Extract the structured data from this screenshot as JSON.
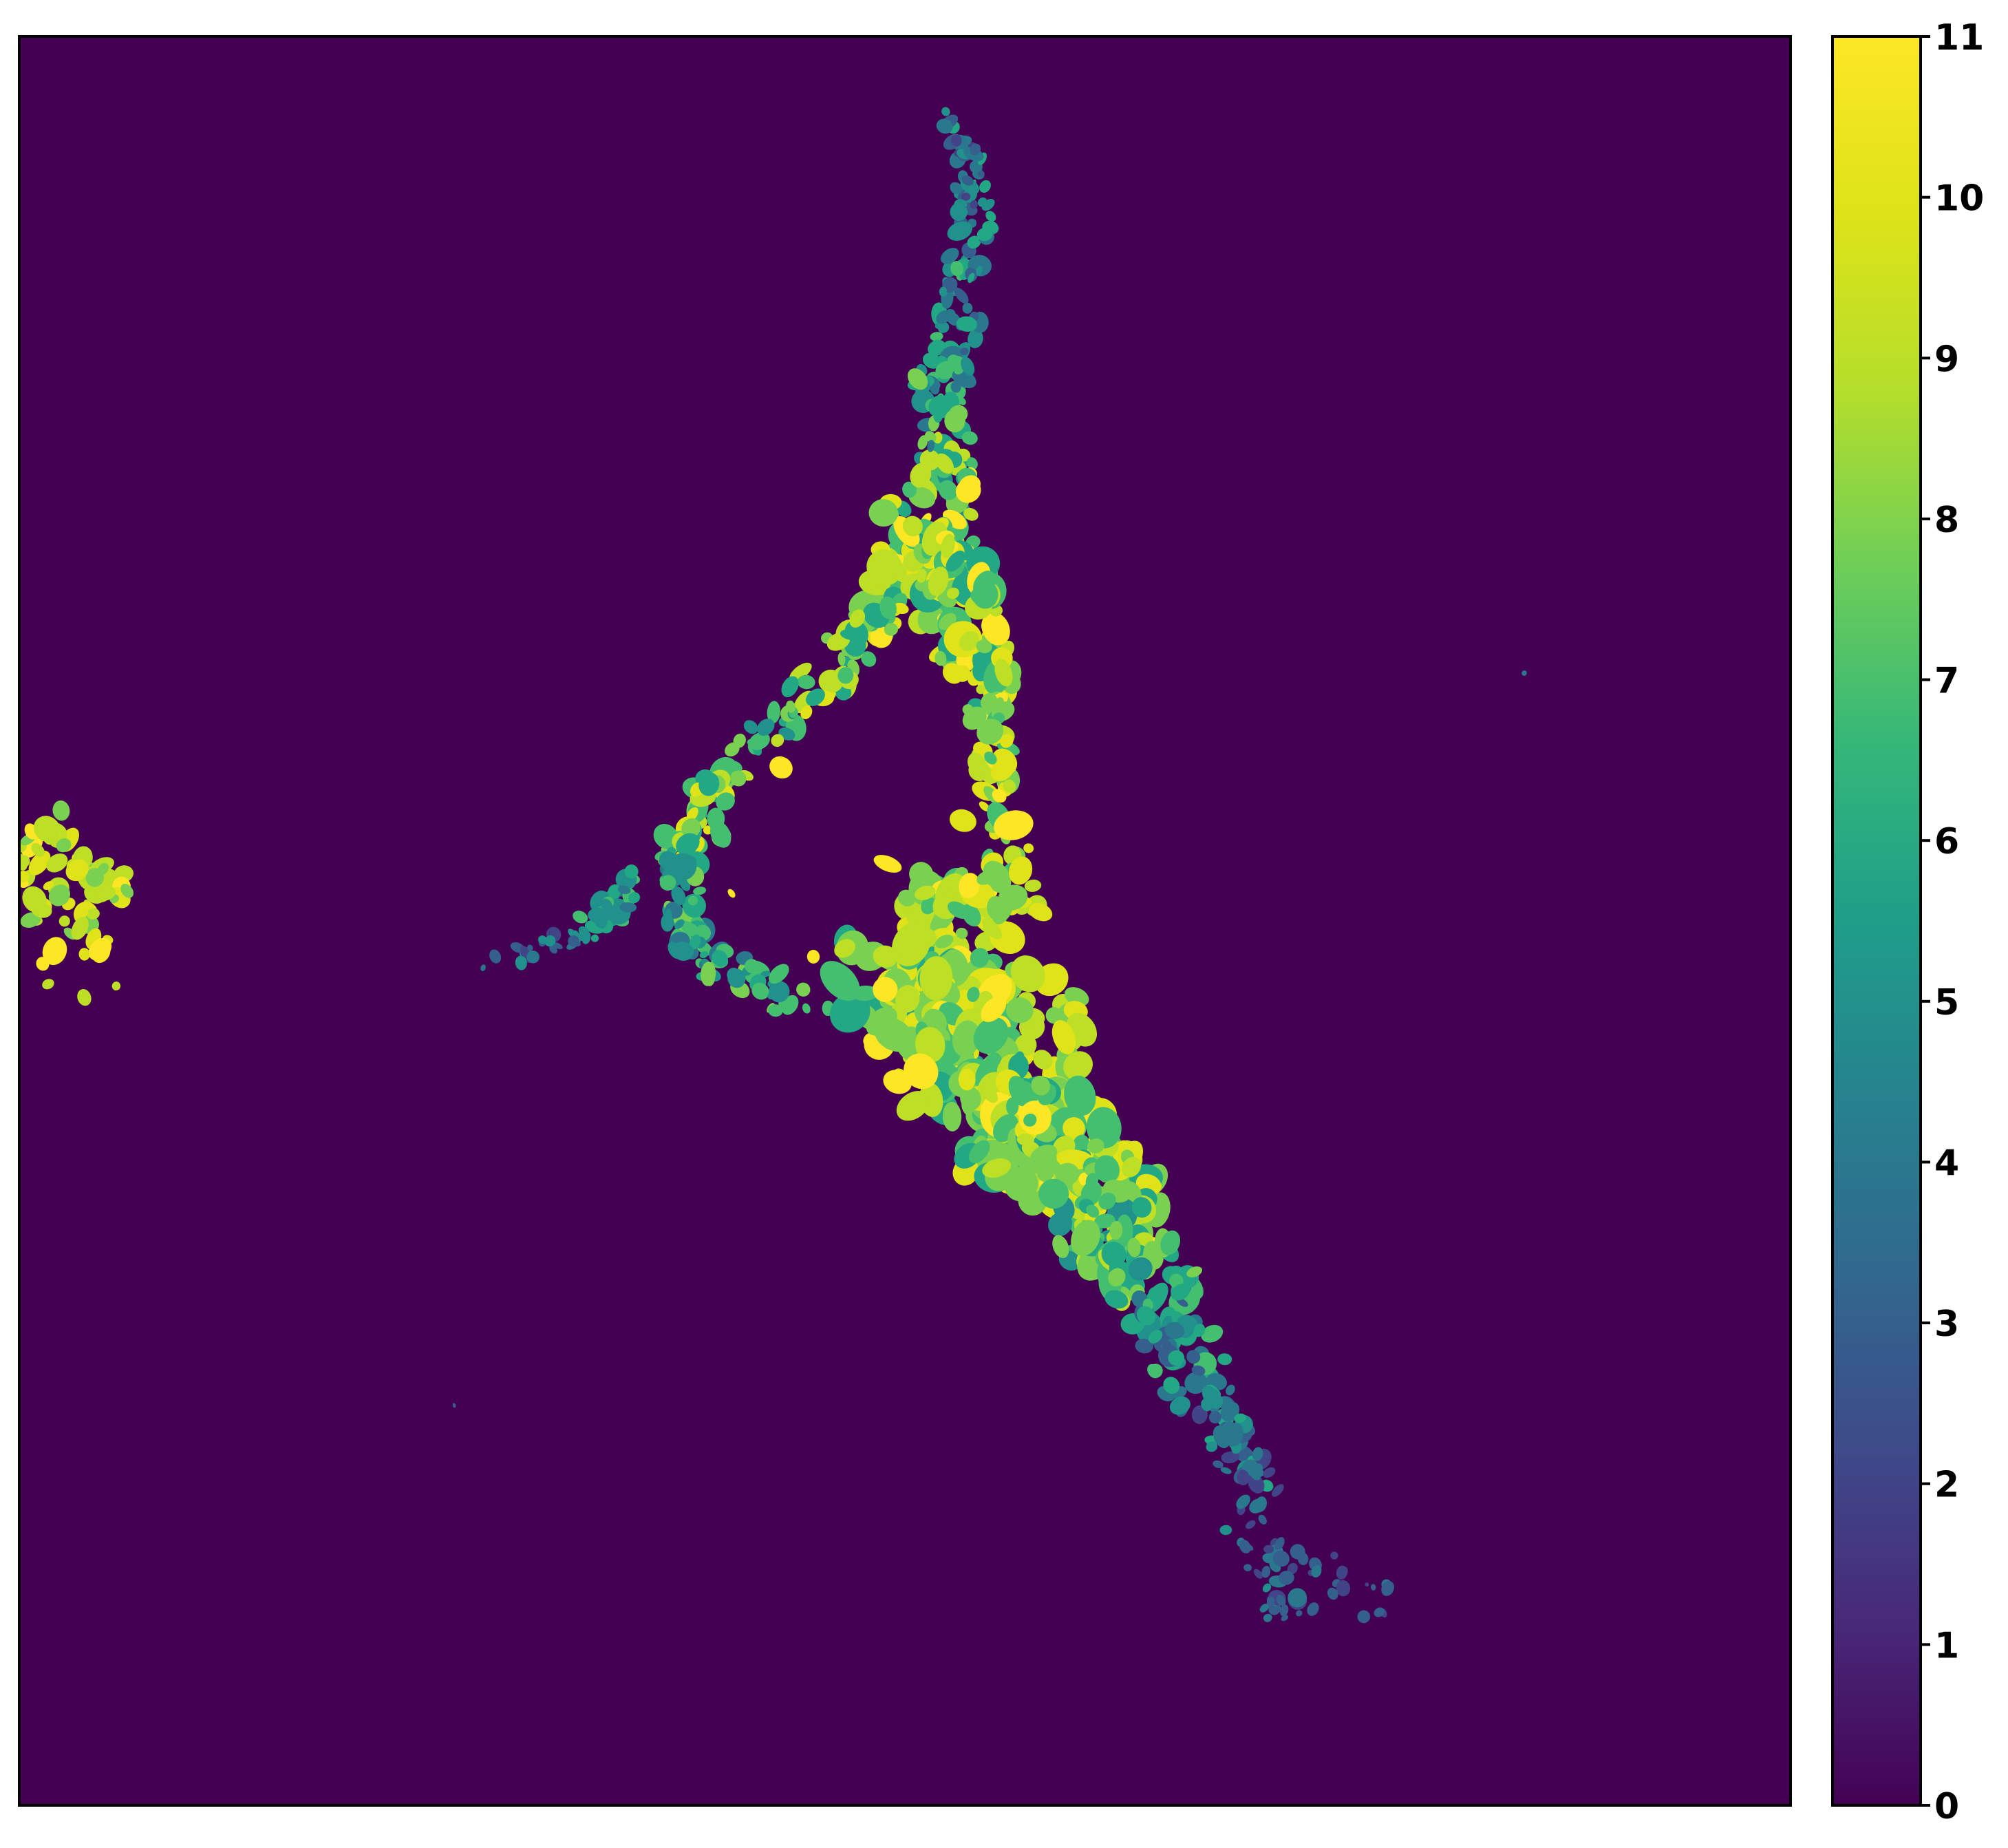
{
  "figure": {
    "kind": "false-color microscopy image with colorbar",
    "colormap": "viridis",
    "background_color": "#440154",
    "colors": {
      "v0": "#440154",
      "v1": "#482475",
      "v2": "#414487",
      "v3": "#355f8d",
      "v4": "#2a788e",
      "v5": "#21918c",
      "v6": "#22a884",
      "v7": "#44bf70",
      "v8": "#7ad151",
      "v9": "#bddf26",
      "v10": "#dfe318",
      "v11": "#fde725"
    }
  },
  "colorbar": {
    "min": 0,
    "max": 11,
    "ticks": [
      "0",
      "1",
      "2",
      "3",
      "4",
      "5",
      "6",
      "7",
      "8",
      "9",
      "10",
      "11"
    ]
  }
}
